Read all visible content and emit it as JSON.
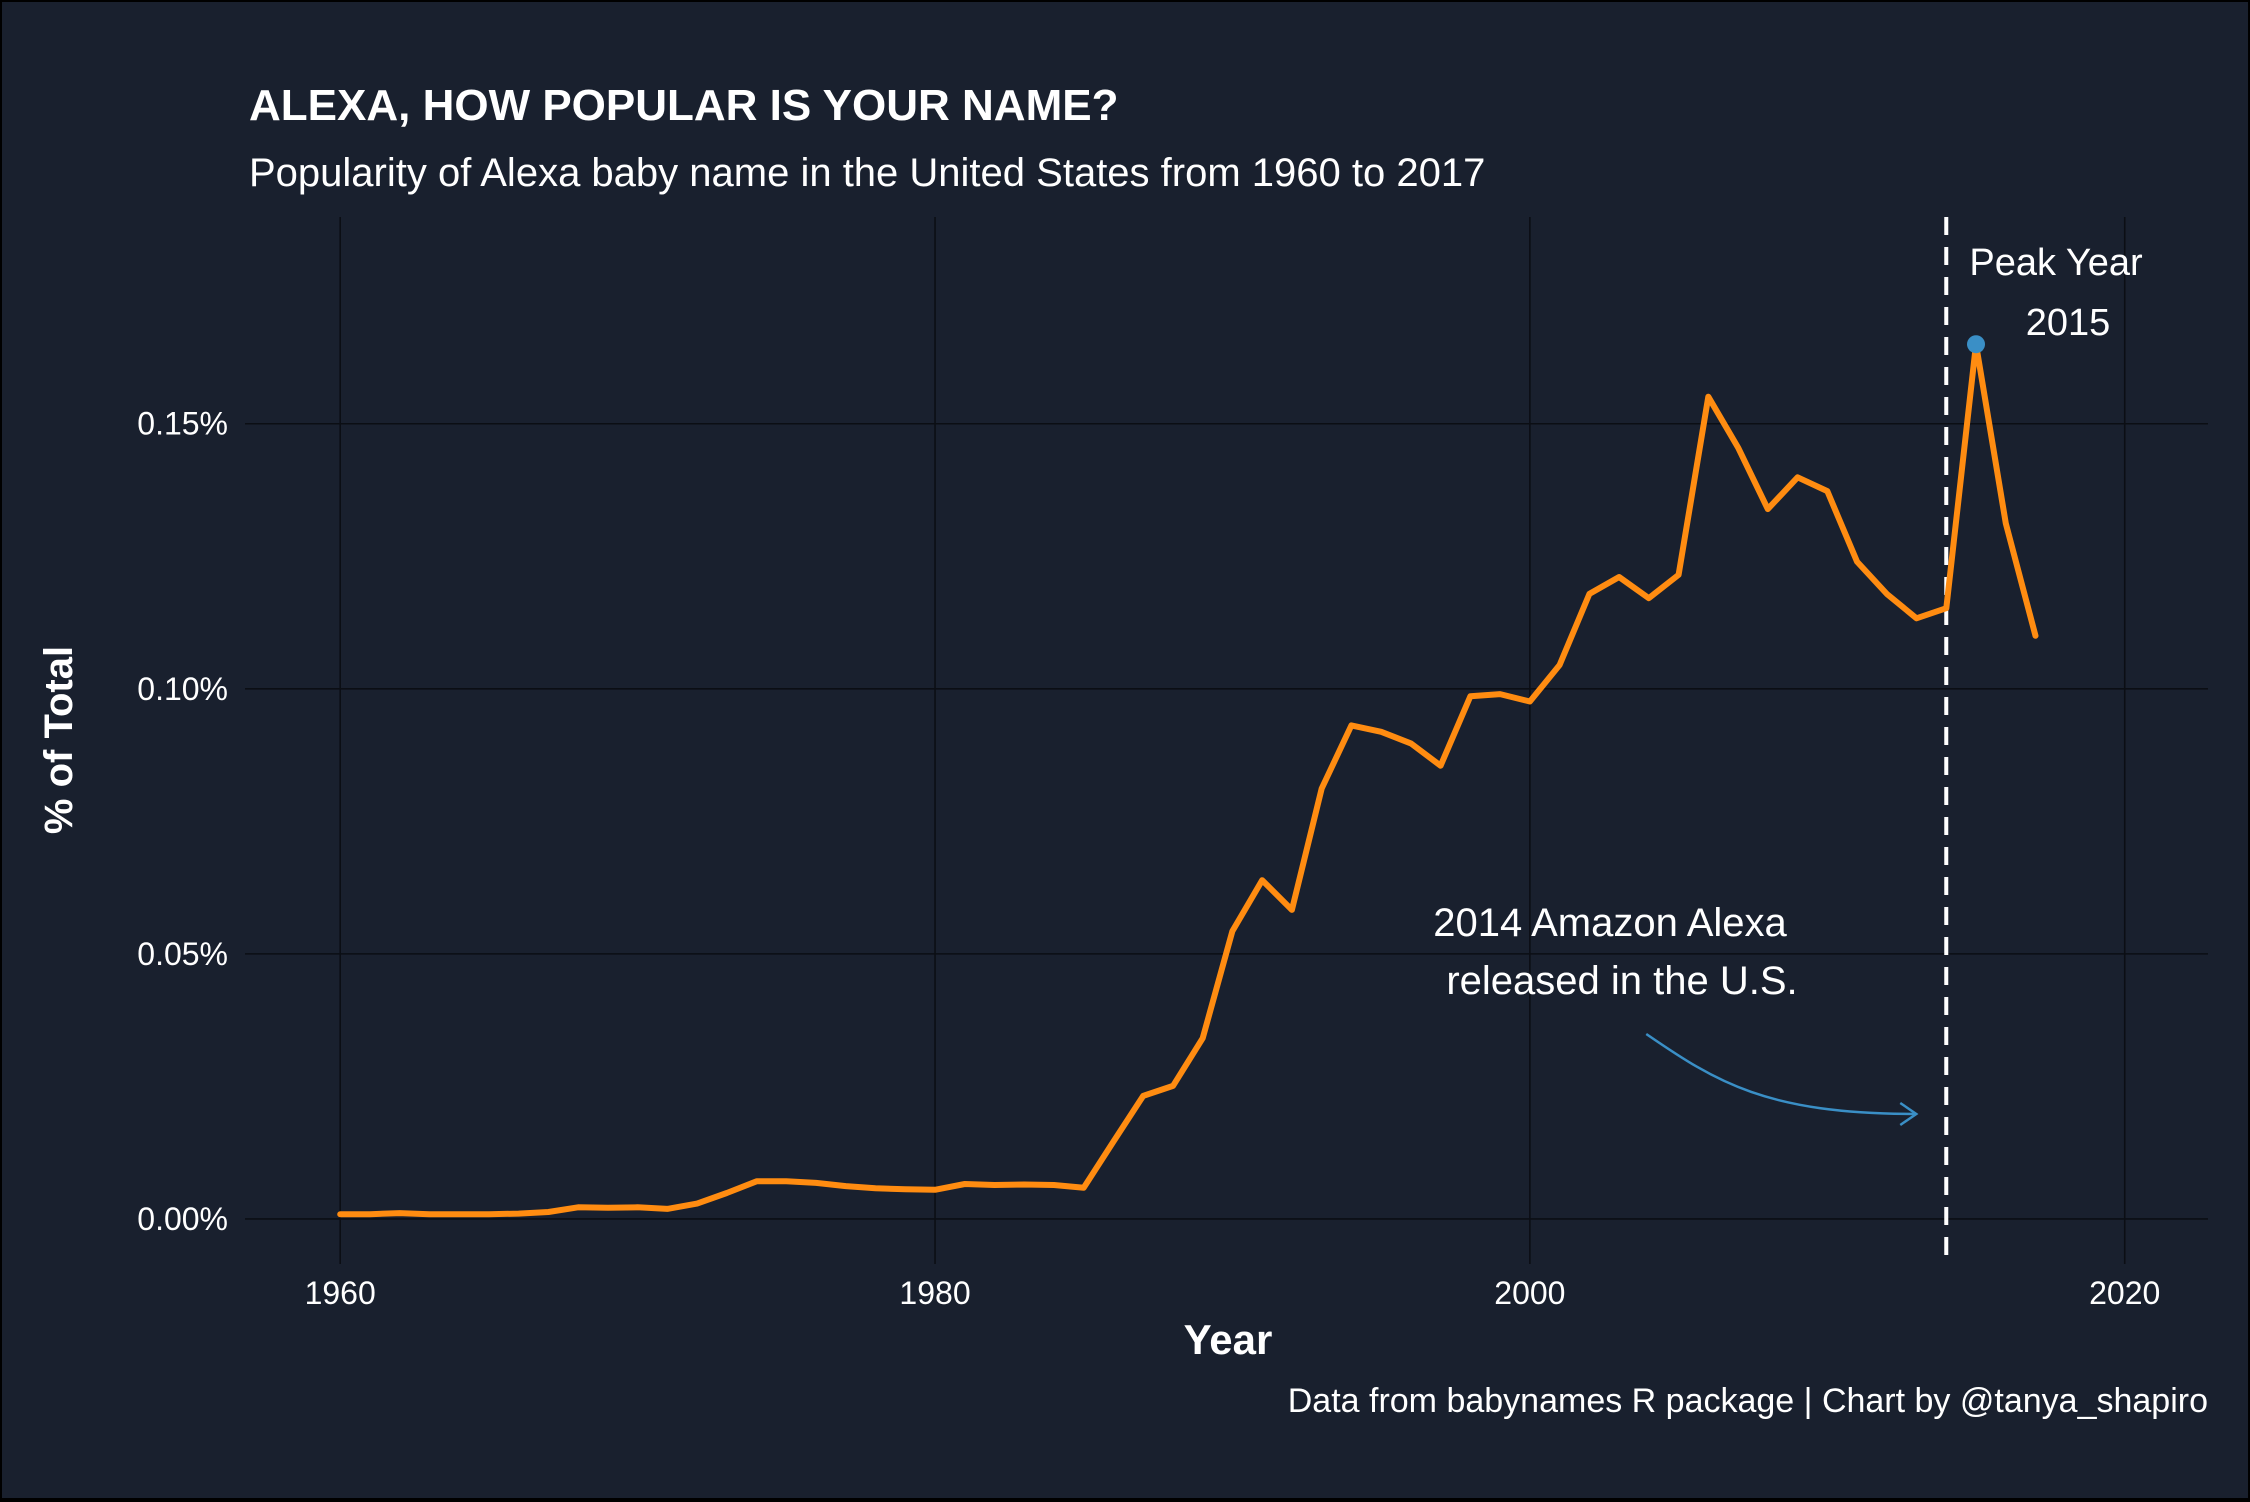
{
  "chart_data": {
    "type": "line",
    "title": "ALEXA, HOW POPULAR IS YOUR NAME?",
    "subtitle": "Popularity of Alexa baby name in the United States from 1960 to 2017",
    "xlabel": "Year",
    "ylabel": "% of Total",
    "caption": "Data from babynames R package | Chart by @tanya_shapiro",
    "xlim": [
      1956.8,
      2022.8
    ],
    "ylim": [
      -0.0085,
      0.189
    ],
    "x_ticks": [
      1960,
      1980,
      2000,
      2020
    ],
    "x_tick_labels": [
      "1960",
      "1980",
      "2000",
      "2020"
    ],
    "y_ticks": [
      0,
      0.05,
      0.1,
      0.15
    ],
    "y_tick_labels": [
      "0.00%",
      "0.05%",
      "0.10%",
      "0.15%"
    ],
    "grid": true,
    "series": [
      {
        "color": "#ff8c11",
        "x": [
          1960,
          1961,
          1962,
          1963,
          1964,
          1965,
          1966,
          1967,
          1968,
          1969,
          1970,
          1971,
          1972,
          1973,
          1974,
          1975,
          1976,
          1977,
          1978,
          1979,
          1980,
          1981,
          1982,
          1983,
          1984,
          1985,
          1986,
          1987,
          1988,
          1989,
          1990,
          1991,
          1992,
          1993,
          1994,
          1995,
          1996,
          1997,
          1998,
          1999,
          2000,
          2001,
          2002,
          2003,
          2004,
          2005,
          2006,
          2007,
          2008,
          2009,
          2010,
          2011,
          2012,
          2013,
          2014,
          2015,
          2016,
          2017
        ],
        "values": [
          0.0009,
          0.0009,
          0.0011,
          0.0009,
          0.0009,
          0.0009,
          0.001,
          0.0013,
          0.0022,
          0.0021,
          0.0022,
          0.0019,
          0.0029,
          0.0049,
          0.0071,
          0.0071,
          0.0068,
          0.0062,
          0.0058,
          0.0056,
          0.0055,
          0.0066,
          0.0064,
          0.0065,
          0.0064,
          0.0059,
          0.0146,
          0.0232,
          0.0251,
          0.0341,
          0.0543,
          0.0639,
          0.0583,
          0.0812,
          0.0931,
          0.0919,
          0.0897,
          0.0855,
          0.0986,
          0.099,
          0.0976,
          0.1045,
          0.1179,
          0.1211,
          0.1171,
          0.1215,
          0.1551,
          0.1455,
          0.1339,
          0.1399,
          0.1373,
          0.124,
          0.1179,
          0.1133,
          0.1152,
          0.165,
          0.1312,
          0.11
        ]
      }
    ],
    "peak": {
      "x": 2015,
      "y": 0.165,
      "color": "#3a8fc6"
    },
    "vline": {
      "x": 2014,
      "style": "dashed",
      "color": "#ffffff"
    },
    "annotations": {
      "peak_line1": "Peak Year",
      "peak_line2": "2015",
      "release_line1": "2014 Amazon Alexa",
      "release_line2": "released in the U.S.",
      "arrow_color": "#3a8fc6"
    }
  }
}
